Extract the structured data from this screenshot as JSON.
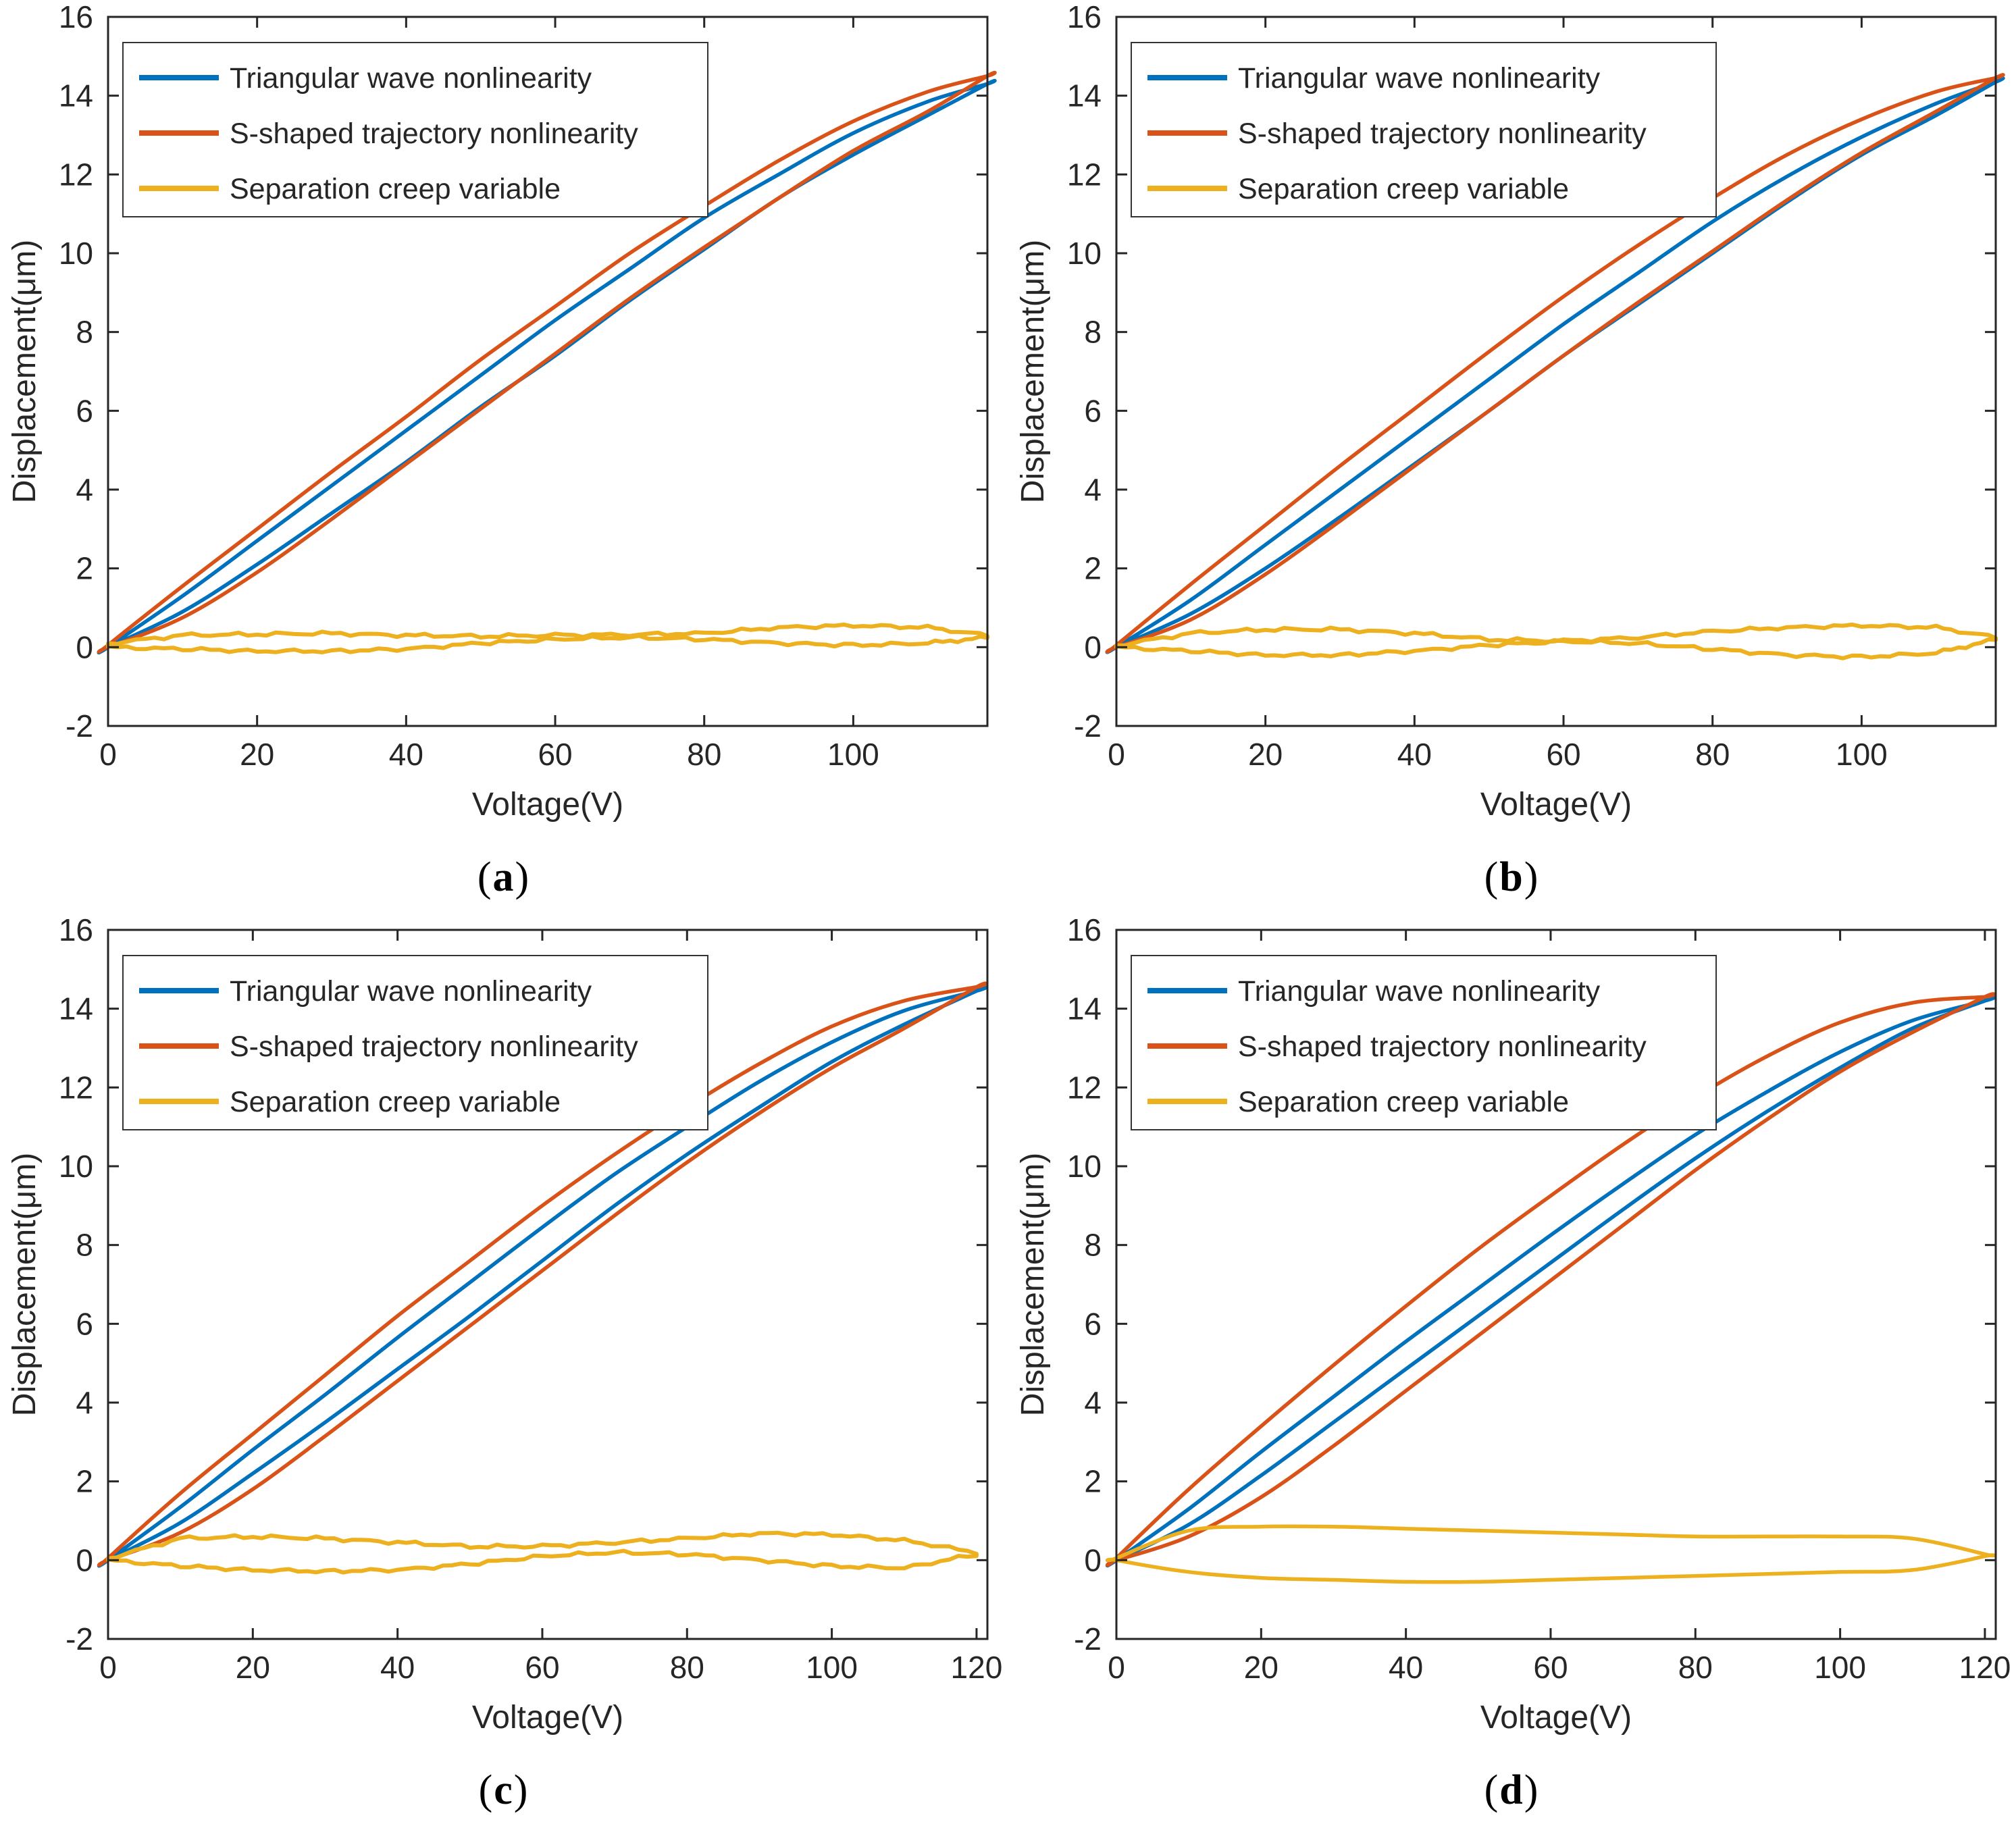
{
  "figure": {
    "xlabel": "Voltage(V)",
    "ylabel": "Displacement(μm)",
    "axis_color": "#262626",
    "background": "#ffffff",
    "legend_entries": [
      "Triangular wave nonlinearity",
      "S-shaped trajectory nonlinearity",
      "Separation creep variable"
    ],
    "series_colors": {
      "triangular": "#0072BD",
      "s_shaped": "#D95319",
      "creep": "#EDB120"
    }
  },
  "chart_data": [
    {
      "type": "line",
      "caption": {
        "open": "(",
        "letter": "a",
        "close": ")"
      },
      "xlabel": "Voltage(V)",
      "ylabel": "Displacement(μm)",
      "xlim": [
        0,
        118
      ],
      "ylim": [
        -2,
        16
      ],
      "xticks": [
        0,
        20,
        40,
        60,
        80,
        100
      ],
      "yticks": [
        -2,
        0,
        2,
        4,
        6,
        8,
        10,
        12,
        14,
        16
      ],
      "grid": false,
      "legend_position": "top-left",
      "legend": [
        "Triangular wave nonlinearity",
        "S-shaped trajectory nonlinearity",
        "Separation creep variable"
      ],
      "series": [
        {
          "name": "Triangular wave nonlinearity",
          "color": "#0072BD",
          "jitter": false,
          "x": [
            0,
            10,
            20,
            30,
            40,
            50,
            60,
            70,
            80,
            90,
            100,
            110,
            118
          ],
          "y_ascending": [
            0,
            0.9,
            2.1,
            3.4,
            4.7,
            6.1,
            7.4,
            8.8,
            10.1,
            11.4,
            12.5,
            13.5,
            14.3
          ],
          "y_descending": [
            0,
            1.3,
            2.7,
            4.1,
            5.5,
            6.9,
            8.3,
            9.6,
            10.9,
            12.0,
            13.05,
            13.85,
            14.3
          ]
        },
        {
          "name": "S-shaped trajectory nonlinearity",
          "color": "#D95319",
          "jitter": false,
          "x": [
            0,
            10,
            20,
            30,
            40,
            50,
            60,
            70,
            80,
            90,
            100,
            110,
            118
          ],
          "y_ascending": [
            0,
            0.75,
            1.9,
            3.25,
            4.65,
            6.05,
            7.45,
            8.85,
            10.15,
            11.4,
            12.6,
            13.6,
            14.5
          ],
          "y_descending": [
            0.05,
            1.55,
            3.0,
            4.45,
            5.85,
            7.3,
            8.65,
            10.0,
            11.2,
            12.35,
            13.35,
            14.1,
            14.5
          ]
        },
        {
          "name": "Separation creep variable",
          "color": "#EDB120",
          "jitter": true,
          "x": [
            0,
            10,
            20,
            30,
            40,
            50,
            60,
            70,
            80,
            90,
            100,
            110,
            118
          ],
          "y_ascending": [
            0,
            -0.05,
            -0.1,
            -0.1,
            -0.05,
            0.1,
            0.2,
            0.25,
            0.2,
            0.1,
            0.05,
            0.1,
            0.25
          ],
          "y_descending": [
            0.1,
            0.3,
            0.33,
            0.35,
            0.3,
            0.28,
            0.3,
            0.32,
            0.35,
            0.5,
            0.55,
            0.5,
            0.3
          ]
        }
      ]
    },
    {
      "type": "line",
      "caption": {
        "open": "(",
        "letter": "b",
        "close": ")"
      },
      "xlabel": "Voltage(V)",
      "ylabel": "Displacement(μm)",
      "xlim": [
        0,
        118
      ],
      "ylim": [
        -2,
        16
      ],
      "xticks": [
        0,
        20,
        40,
        60,
        80,
        100
      ],
      "yticks": [
        -2,
        0,
        2,
        4,
        6,
        8,
        10,
        12,
        14,
        16
      ],
      "grid": false,
      "legend_position": "top-left",
      "legend": [
        "Triangular wave nonlinearity",
        "S-shaped trajectory nonlinearity",
        "Separation creep variable"
      ],
      "series": [
        {
          "name": "Triangular wave nonlinearity",
          "color": "#0072BD",
          "jitter": false,
          "x": [
            0,
            10,
            20,
            30,
            40,
            50,
            60,
            70,
            80,
            90,
            100,
            110,
            118
          ],
          "y_ascending": [
            0,
            0.85,
            2.0,
            3.3,
            4.65,
            6.0,
            7.4,
            8.7,
            10.0,
            11.3,
            12.5,
            13.5,
            14.35
          ],
          "y_descending": [
            0,
            1.2,
            2.6,
            4.0,
            5.4,
            6.8,
            8.2,
            9.5,
            10.8,
            11.95,
            12.95,
            13.8,
            14.35
          ]
        },
        {
          "name": "S-shaped trajectory nonlinearity",
          "color": "#D95319",
          "jitter": false,
          "x": [
            0,
            10,
            20,
            30,
            40,
            50,
            60,
            70,
            80,
            90,
            100,
            110,
            118
          ],
          "y_ascending": [
            0,
            0.7,
            1.85,
            3.2,
            4.6,
            6.0,
            7.4,
            8.75,
            10.05,
            11.35,
            12.55,
            13.6,
            14.45
          ],
          "y_descending": [
            0.05,
            1.6,
            3.1,
            4.6,
            6.05,
            7.5,
            8.9,
            10.2,
            11.4,
            12.5,
            13.4,
            14.1,
            14.45
          ]
        },
        {
          "name": "Separation creep variable",
          "color": "#EDB120",
          "jitter": true,
          "x": [
            0,
            10,
            20,
            30,
            40,
            50,
            60,
            70,
            80,
            90,
            100,
            110,
            118
          ],
          "y_ascending": [
            0,
            -0.1,
            -0.2,
            -0.2,
            -0.1,
            0.05,
            0.15,
            0.1,
            -0.05,
            -0.2,
            -0.25,
            -0.15,
            0.2
          ],
          "y_descending": [
            0.05,
            0.35,
            0.45,
            0.45,
            0.35,
            0.2,
            0.15,
            0.25,
            0.4,
            0.5,
            0.55,
            0.5,
            0.25
          ]
        }
      ]
    },
    {
      "type": "line",
      "caption": {
        "open": "(",
        "letter": "c",
        "close": ")"
      },
      "xlabel": "Voltage(V)",
      "ylabel": "Displacement(μm)",
      "xlim": [
        0,
        121.5
      ],
      "ylim": [
        -2,
        16
      ],
      "xticks": [
        0,
        20,
        40,
        60,
        80,
        100,
        120
      ],
      "yticks": [
        -2,
        0,
        2,
        4,
        6,
        8,
        10,
        12,
        14,
        16
      ],
      "grid": false,
      "legend_position": "top-left",
      "legend": [
        "Triangular wave nonlinearity",
        "S-shaped trajectory nonlinearity",
        "Separation creep variable"
      ],
      "series": [
        {
          "name": "Triangular wave nonlinearity",
          "color": "#0072BD",
          "jitter": false,
          "x": [
            0,
            10,
            20,
            30,
            40,
            50,
            60,
            70,
            80,
            90,
            100,
            110,
            120
          ],
          "y_ascending": [
            0,
            0.95,
            2.2,
            3.5,
            4.85,
            6.2,
            7.6,
            9.0,
            10.3,
            11.5,
            12.65,
            13.6,
            14.45
          ],
          "y_descending": [
            0,
            1.35,
            2.8,
            4.2,
            5.65,
            7.05,
            8.45,
            9.8,
            11.0,
            12.15,
            13.15,
            13.95,
            14.45
          ]
        },
        {
          "name": "S-shaped trajectory nonlinearity",
          "color": "#D95319",
          "jitter": false,
          "x": [
            0,
            10,
            20,
            30,
            40,
            50,
            60,
            70,
            80,
            90,
            100,
            110,
            120
          ],
          "y_ascending": [
            0,
            0.7,
            1.8,
            3.15,
            4.55,
            5.95,
            7.35,
            8.75,
            10.1,
            11.35,
            12.5,
            13.5,
            14.55
          ],
          "y_descending": [
            0.05,
            1.7,
            3.2,
            4.7,
            6.2,
            7.6,
            9.0,
            10.3,
            11.5,
            12.6,
            13.55,
            14.2,
            14.55
          ]
        },
        {
          "name": "Separation creep variable",
          "color": "#EDB120",
          "jitter": true,
          "x": [
            0,
            10,
            20,
            30,
            40,
            50,
            60,
            70,
            80,
            90,
            100,
            110,
            120
          ],
          "y_ascending": [
            0,
            -0.15,
            -0.25,
            -0.28,
            -0.25,
            -0.1,
            0.1,
            0.2,
            0.15,
            0.0,
            -0.15,
            -0.2,
            0.15
          ],
          "y_descending": [
            0.05,
            0.55,
            0.6,
            0.55,
            0.45,
            0.35,
            0.35,
            0.45,
            0.55,
            0.68,
            0.65,
            0.5,
            0.2
          ]
        }
      ]
    },
    {
      "type": "line",
      "caption": {
        "open": "(",
        "letter": "d",
        "close": ")"
      },
      "xlabel": "Voltage(V)",
      "ylabel": "Displacement(μm)",
      "xlim": [
        0,
        121.5
      ],
      "ylim": [
        -2,
        16
      ],
      "xticks": [
        0,
        20,
        40,
        60,
        80,
        100,
        120
      ],
      "yticks": [
        -2,
        0,
        2,
        4,
        6,
        8,
        10,
        12,
        14,
        16
      ],
      "grid": false,
      "legend_position": "top-left",
      "legend": [
        "Triangular wave nonlinearity",
        "S-shaped trajectory nonlinearity",
        "Separation creep variable"
      ],
      "series": [
        {
          "name": "Triangular wave nonlinearity",
          "color": "#0072BD",
          "jitter": false,
          "x": [
            0,
            10,
            20,
            30,
            40,
            50,
            60,
            70,
            80,
            90,
            100,
            110,
            120
          ],
          "y_ascending": [
            0,
            0.9,
            2.15,
            3.5,
            4.85,
            6.2,
            7.55,
            8.9,
            10.2,
            11.4,
            12.5,
            13.5,
            14.2
          ],
          "y_descending": [
            0,
            1.3,
            2.75,
            4.15,
            5.55,
            6.9,
            8.25,
            9.55,
            10.8,
            11.9,
            12.9,
            13.7,
            14.2
          ]
        },
        {
          "name": "S-shaped trajectory nonlinearity",
          "color": "#D95319",
          "jitter": false,
          "x": [
            0,
            10,
            20,
            30,
            40,
            50,
            60,
            70,
            80,
            90,
            100,
            110,
            120
          ],
          "y_ascending": [
            0,
            0.6,
            1.6,
            2.9,
            4.3,
            5.7,
            7.1,
            8.5,
            9.9,
            11.2,
            12.4,
            13.4,
            14.3
          ],
          "y_descending": [
            0.05,
            1.8,
            3.4,
            4.95,
            6.45,
            7.9,
            9.25,
            10.55,
            11.75,
            12.8,
            13.65,
            14.15,
            14.3
          ]
        },
        {
          "name": "Separation creep variable",
          "color": "#EDB120",
          "jitter": false,
          "x": [
            0,
            10,
            20,
            30,
            40,
            50,
            60,
            70,
            80,
            90,
            100,
            110,
            120
          ],
          "y_ascending": [
            0,
            -0.3,
            -0.45,
            -0.5,
            -0.55,
            -0.55,
            -0.5,
            -0.45,
            -0.4,
            -0.35,
            -0.3,
            -0.25,
            0.1
          ],
          "y_descending": [
            0.05,
            0.75,
            0.85,
            0.85,
            0.8,
            0.75,
            0.7,
            0.65,
            0.6,
            0.6,
            0.6,
            0.55,
            0.15
          ]
        }
      ]
    }
  ]
}
